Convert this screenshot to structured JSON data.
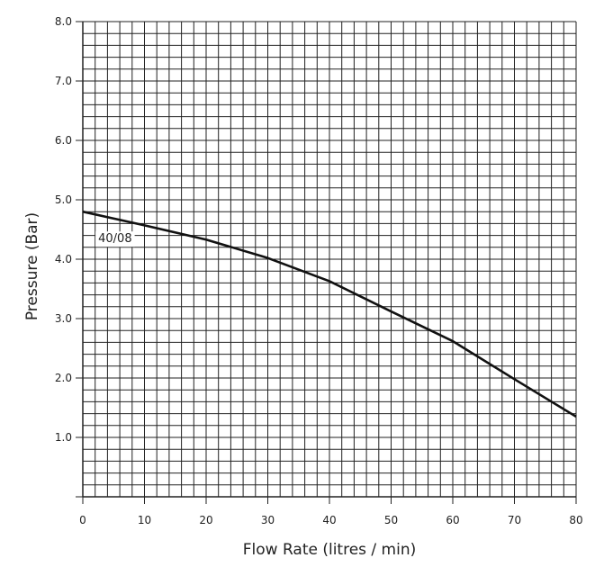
{
  "chart_data": {
    "type": "line",
    "title": "",
    "xlabel": "Flow Rate (litres / min)",
    "ylabel": "Pressure (Bar)",
    "xlim": [
      0,
      80
    ],
    "ylim": [
      0,
      8
    ],
    "x_ticks": [
      "0",
      "10",
      "20",
      "30",
      "40",
      "50",
      "60",
      "70",
      "80"
    ],
    "y_ticks": [
      "1.0",
      "2.0",
      "3.0",
      "4.0",
      "5.0",
      "6.0",
      "7.0",
      "8.0"
    ],
    "grid": true,
    "series": [
      {
        "name": "40/08",
        "x": [
          0,
          10,
          20,
          30,
          40,
          50,
          60,
          70,
          80
        ],
        "y": [
          4.8,
          4.57,
          4.33,
          4.02,
          3.63,
          3.12,
          2.62,
          1.98,
          1.35
        ]
      }
    ]
  }
}
